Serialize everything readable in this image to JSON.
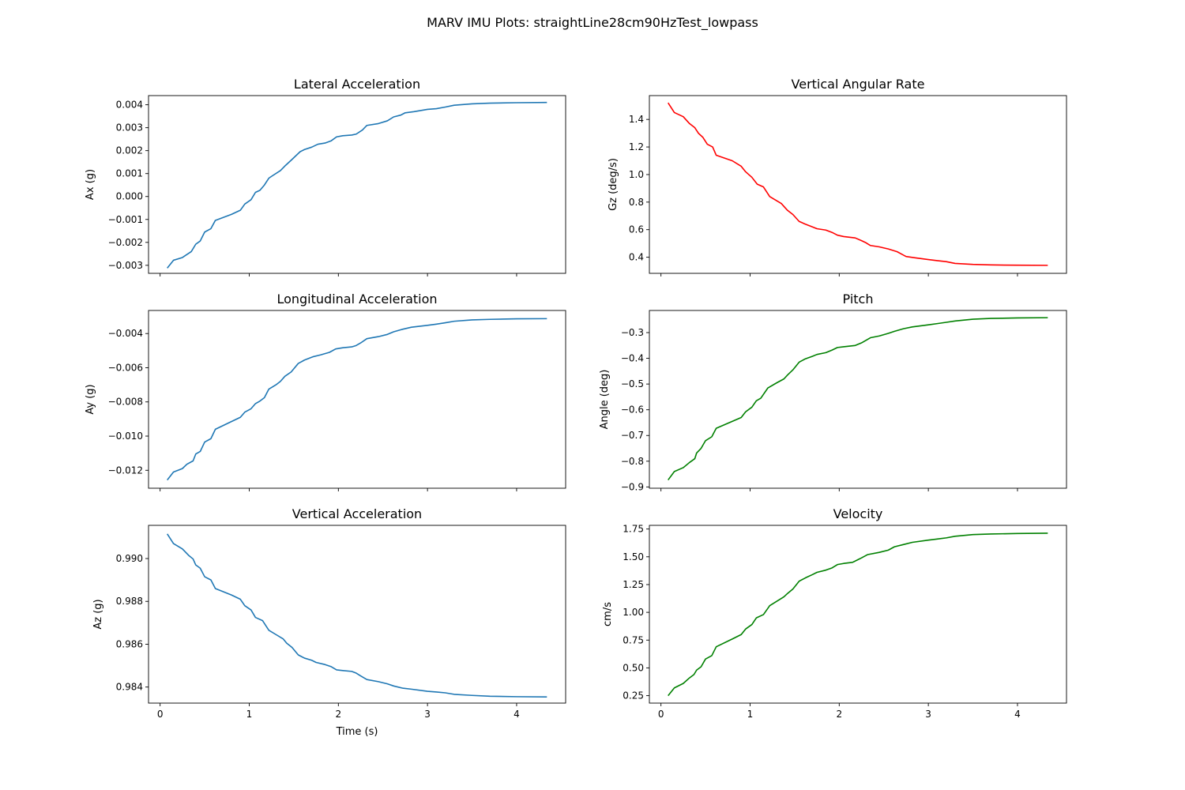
{
  "figure": {
    "title": "MARV IMU Plots: straightLine28cm90HzTest_lowpass"
  },
  "chart_data": [
    {
      "type": "line",
      "title": "Lateral Acceleration",
      "xlabel": "",
      "ylabel": "Ax (g)",
      "xlim": [
        -0.13,
        4.55
      ],
      "ylim": [
        -0.00335,
        0.0044
      ],
      "xticks": [
        0,
        1,
        2,
        3,
        4
      ],
      "xtick_labels_visible": false,
      "yticks": [
        -0.003,
        -0.002,
        -0.001,
        0.0,
        0.001,
        0.002,
        0.003,
        0.004
      ],
      "ytick_labels": [
        "−0.003",
        "−0.002",
        "−0.001",
        "0.000",
        "0.001",
        "0.002",
        "0.003",
        "0.004"
      ],
      "color": "#1f77b4",
      "points": [
        [
          0.08,
          -0.00312
        ],
        [
          0.15,
          -0.00278
        ],
        [
          0.25,
          -0.00266
        ],
        [
          0.35,
          -0.0024
        ],
        [
          0.4,
          -0.00208
        ],
        [
          0.45,
          -0.00194
        ],
        [
          0.5,
          -0.00155
        ],
        [
          0.57,
          -0.0014
        ],
        [
          0.62,
          -0.00104
        ],
        [
          0.8,
          -0.00078
        ],
        [
          0.9,
          -0.0006
        ],
        [
          0.95,
          -0.00033
        ],
        [
          1.02,
          -0.00014
        ],
        [
          1.07,
          0.00018
        ],
        [
          1.12,
          0.00027
        ],
        [
          1.17,
          0.0005
        ],
        [
          1.22,
          0.0008
        ],
        [
          1.27,
          0.00093
        ],
        [
          1.35,
          0.00113
        ],
        [
          1.4,
          0.00133
        ],
        [
          1.47,
          0.00158
        ],
        [
          1.57,
          0.00195
        ],
        [
          1.62,
          0.00205
        ],
        [
          1.7,
          0.00215
        ],
        [
          1.77,
          0.00228
        ],
        [
          1.85,
          0.00233
        ],
        [
          1.92,
          0.00243
        ],
        [
          1.98,
          0.0026
        ],
        [
          2.05,
          0.00265
        ],
        [
          2.15,
          0.00268
        ],
        [
          2.2,
          0.00272
        ],
        [
          2.27,
          0.0029
        ],
        [
          2.32,
          0.0031
        ],
        [
          2.45,
          0.00318
        ],
        [
          2.55,
          0.0033
        ],
        [
          2.62,
          0.00347
        ],
        [
          2.7,
          0.00355
        ],
        [
          2.75,
          0.00365
        ],
        [
          2.85,
          0.0037
        ],
        [
          3.0,
          0.0038
        ],
        [
          3.1,
          0.00383
        ],
        [
          3.2,
          0.0039
        ],
        [
          3.3,
          0.00398
        ],
        [
          3.5,
          0.00404
        ],
        [
          3.7,
          0.00407
        ],
        [
          4.0,
          0.00409
        ],
        [
          4.34,
          0.0041
        ]
      ]
    },
    {
      "type": "line",
      "title": "Vertical Angular Rate",
      "xlabel": "",
      "ylabel": "Gz (deg/s)",
      "xlim": [
        -0.13,
        4.55
      ],
      "ylim": [
        0.283,
        1.573
      ],
      "xticks": [
        0,
        1,
        2,
        3,
        4
      ],
      "xtick_labels_visible": false,
      "yticks": [
        0.4,
        0.6,
        0.8,
        1.0,
        1.2,
        1.4
      ],
      "ytick_labels": [
        "0.4",
        "0.6",
        "0.8",
        "1.0",
        "1.2",
        "1.4"
      ],
      "color": "#ff0000",
      "points": [
        [
          0.08,
          1.52
        ],
        [
          0.15,
          1.45
        ],
        [
          0.25,
          1.42
        ],
        [
          0.32,
          1.37
        ],
        [
          0.38,
          1.34
        ],
        [
          0.42,
          1.3
        ],
        [
          0.47,
          1.27
        ],
        [
          0.52,
          1.22
        ],
        [
          0.58,
          1.2
        ],
        [
          0.62,
          1.14
        ],
        [
          0.8,
          1.1
        ],
        [
          0.9,
          1.06
        ],
        [
          0.95,
          1.02
        ],
        [
          1.02,
          0.98
        ],
        [
          1.08,
          0.93
        ],
        [
          1.15,
          0.91
        ],
        [
          1.22,
          0.84
        ],
        [
          1.35,
          0.79
        ],
        [
          1.42,
          0.74
        ],
        [
          1.48,
          0.71
        ],
        [
          1.55,
          0.66
        ],
        [
          1.62,
          0.64
        ],
        [
          1.7,
          0.62
        ],
        [
          1.75,
          0.607
        ],
        [
          1.85,
          0.597
        ],
        [
          1.92,
          0.58
        ],
        [
          1.98,
          0.56
        ],
        [
          2.05,
          0.55
        ],
        [
          2.18,
          0.54
        ],
        [
          2.25,
          0.52
        ],
        [
          2.3,
          0.505
        ],
        [
          2.35,
          0.485
        ],
        [
          2.45,
          0.475
        ],
        [
          2.55,
          0.46
        ],
        [
          2.65,
          0.44
        ],
        [
          2.75,
          0.405
        ],
        [
          2.85,
          0.396
        ],
        [
          3.0,
          0.383
        ],
        [
          3.1,
          0.375
        ],
        [
          3.2,
          0.368
        ],
        [
          3.3,
          0.355
        ],
        [
          3.5,
          0.348
        ],
        [
          3.7,
          0.344
        ],
        [
          4.0,
          0.342
        ],
        [
          4.34,
          0.341
        ]
      ]
    },
    {
      "type": "line",
      "title": "Longitudinal Acceleration",
      "xlabel": "",
      "ylabel": "Ay (g)",
      "xlim": [
        -0.13,
        4.55
      ],
      "ylim": [
        -0.01305,
        -0.00265
      ],
      "xticks": [
        0,
        1,
        2,
        3,
        4
      ],
      "xtick_labels_visible": false,
      "yticks": [
        -0.012,
        -0.01,
        -0.008,
        -0.006,
        -0.004
      ],
      "ytick_labels": [
        "−0.012",
        "−0.010",
        "−0.008",
        "−0.006",
        "−0.004"
      ],
      "color": "#1f77b4",
      "points": [
        [
          0.08,
          -0.01257
        ],
        [
          0.15,
          -0.0121
        ],
        [
          0.25,
          -0.0119
        ],
        [
          0.3,
          -0.01165
        ],
        [
          0.37,
          -0.01145
        ],
        [
          0.4,
          -0.01105
        ],
        [
          0.45,
          -0.0109
        ],
        [
          0.5,
          -0.01035
        ],
        [
          0.57,
          -0.01015
        ],
        [
          0.62,
          -0.0096
        ],
        [
          0.8,
          -0.00915
        ],
        [
          0.9,
          -0.0089
        ],
        [
          0.95,
          -0.0086
        ],
        [
          1.02,
          -0.0084
        ],
        [
          1.07,
          -0.0081
        ],
        [
          1.12,
          -0.00795
        ],
        [
          1.17,
          -0.00775
        ],
        [
          1.22,
          -0.00725
        ],
        [
          1.3,
          -0.007
        ],
        [
          1.35,
          -0.0068
        ],
        [
          1.4,
          -0.0065
        ],
        [
          1.47,
          -0.00625
        ],
        [
          1.55,
          -0.00575
        ],
        [
          1.62,
          -0.00555
        ],
        [
          1.72,
          -0.00535
        ],
        [
          1.8,
          -0.00525
        ],
        [
          1.9,
          -0.0051
        ],
        [
          1.97,
          -0.0049
        ],
        [
          2.05,
          -0.00483
        ],
        [
          2.15,
          -0.00478
        ],
        [
          2.2,
          -0.0047
        ],
        [
          2.25,
          -0.00455
        ],
        [
          2.32,
          -0.0043
        ],
        [
          2.45,
          -0.00418
        ],
        [
          2.55,
          -0.00405
        ],
        [
          2.62,
          -0.0039
        ],
        [
          2.72,
          -0.00375
        ],
        [
          2.82,
          -0.00363
        ],
        [
          3.0,
          -0.00352
        ],
        [
          3.1,
          -0.00345
        ],
        [
          3.2,
          -0.00337
        ],
        [
          3.3,
          -0.00328
        ],
        [
          3.5,
          -0.0032
        ],
        [
          3.7,
          -0.00317
        ],
        [
          4.0,
          -0.00314
        ],
        [
          4.34,
          -0.00313
        ]
      ]
    },
    {
      "type": "line",
      "title": "Pitch",
      "xlabel": "",
      "ylabel": "Angle (deg)",
      "xlim": [
        -0.13,
        4.55
      ],
      "ylim": [
        -0.905,
        -0.214
      ],
      "xticks": [
        0,
        1,
        2,
        3,
        4
      ],
      "xtick_labels_visible": false,
      "yticks": [
        -0.9,
        -0.8,
        -0.7,
        -0.6,
        -0.5,
        -0.4,
        -0.3
      ],
      "ytick_labels": [
        "−0.9",
        "−0.8",
        "−0.7",
        "−0.6",
        "−0.5",
        "−0.4",
        "−0.3"
      ],
      "color": "#008000",
      "points": [
        [
          0.08,
          -0.873
        ],
        [
          0.15,
          -0.84
        ],
        [
          0.25,
          -0.825
        ],
        [
          0.32,
          -0.805
        ],
        [
          0.38,
          -0.79
        ],
        [
          0.4,
          -0.768
        ],
        [
          0.45,
          -0.75
        ],
        [
          0.5,
          -0.72
        ],
        [
          0.57,
          -0.705
        ],
        [
          0.62,
          -0.672
        ],
        [
          0.8,
          -0.645
        ],
        [
          0.9,
          -0.63
        ],
        [
          0.95,
          -0.608
        ],
        [
          1.02,
          -0.59
        ],
        [
          1.07,
          -0.565
        ],
        [
          1.12,
          -0.555
        ],
        [
          1.2,
          -0.515
        ],
        [
          1.3,
          -0.495
        ],
        [
          1.38,
          -0.48
        ],
        [
          1.42,
          -0.465
        ],
        [
          1.48,
          -0.445
        ],
        [
          1.55,
          -0.415
        ],
        [
          1.62,
          -0.402
        ],
        [
          1.7,
          -0.392
        ],
        [
          1.75,
          -0.385
        ],
        [
          1.85,
          -0.378
        ],
        [
          1.92,
          -0.368
        ],
        [
          1.98,
          -0.358
        ],
        [
          2.05,
          -0.355
        ],
        [
          2.18,
          -0.35
        ],
        [
          2.25,
          -0.34
        ],
        [
          2.3,
          -0.33
        ],
        [
          2.35,
          -0.32
        ],
        [
          2.45,
          -0.313
        ],
        [
          2.55,
          -0.303
        ],
        [
          2.62,
          -0.295
        ],
        [
          2.72,
          -0.285
        ],
        [
          2.82,
          -0.278
        ],
        [
          3.0,
          -0.27
        ],
        [
          3.1,
          -0.265
        ],
        [
          3.2,
          -0.26
        ],
        [
          3.3,
          -0.255
        ],
        [
          3.5,
          -0.248
        ],
        [
          3.7,
          -0.245
        ],
        [
          4.0,
          -0.243
        ],
        [
          4.34,
          -0.242
        ]
      ]
    },
    {
      "type": "line",
      "title": "Vertical Acceleration",
      "xlabel": "Time (s)",
      "ylabel": "Az (g)",
      "xlim": [
        -0.13,
        4.55
      ],
      "ylim": [
        0.98325,
        0.99155
      ],
      "xticks": [
        0,
        1,
        2,
        3,
        4
      ],
      "xtick_labels_visible": true,
      "xtick_labels": [
        "0",
        "1",
        "2",
        "3",
        "4"
      ],
      "yticks": [
        0.984,
        0.986,
        0.988,
        0.99
      ],
      "ytick_labels": [
        "0.984",
        "0.986",
        "0.988",
        "0.990"
      ],
      "color": "#1f77b4",
      "points": [
        [
          0.08,
          0.99115
        ],
        [
          0.15,
          0.9907
        ],
        [
          0.25,
          0.99045
        ],
        [
          0.32,
          0.99015
        ],
        [
          0.37,
          0.98998
        ],
        [
          0.4,
          0.9897
        ],
        [
          0.45,
          0.98955
        ],
        [
          0.5,
          0.98915
        ],
        [
          0.57,
          0.989
        ],
        [
          0.62,
          0.9886
        ],
        [
          0.8,
          0.9883
        ],
        [
          0.9,
          0.9881
        ],
        [
          0.95,
          0.9878
        ],
        [
          1.02,
          0.9876
        ],
        [
          1.07,
          0.98725
        ],
        [
          1.15,
          0.9871
        ],
        [
          1.22,
          0.98665
        ],
        [
          1.3,
          0.98645
        ],
        [
          1.38,
          0.98625
        ],
        [
          1.42,
          0.98605
        ],
        [
          1.48,
          0.98585
        ],
        [
          1.55,
          0.9855
        ],
        [
          1.62,
          0.98535
        ],
        [
          1.7,
          0.98525
        ],
        [
          1.75,
          0.98515
        ],
        [
          1.85,
          0.98505
        ],
        [
          1.92,
          0.98495
        ],
        [
          1.98,
          0.9848
        ],
        [
          2.05,
          0.98477
        ],
        [
          2.15,
          0.98473
        ],
        [
          2.2,
          0.98465
        ],
        [
          2.25,
          0.98452
        ],
        [
          2.32,
          0.98435
        ],
        [
          2.45,
          0.98425
        ],
        [
          2.55,
          0.98415
        ],
        [
          2.62,
          0.98405
        ],
        [
          2.72,
          0.98395
        ],
        [
          2.82,
          0.9839
        ],
        [
          3.0,
          0.9838
        ],
        [
          3.1,
          0.98377
        ],
        [
          3.2,
          0.98373
        ],
        [
          3.3,
          0.98366
        ],
        [
          3.5,
          0.98361
        ],
        [
          3.7,
          0.98357
        ],
        [
          4.0,
          0.98355
        ],
        [
          4.34,
          0.98354
        ]
      ]
    },
    {
      "type": "line",
      "title": "Velocity",
      "xlabel": "",
      "ylabel": "cm/s",
      "xlim": [
        -0.13,
        4.55
      ],
      "ylim": [
        0.183,
        1.783
      ],
      "xticks": [
        0,
        1,
        2,
        3,
        4
      ],
      "xtick_labels_visible": true,
      "xtick_labels": [
        "0",
        "1",
        "2",
        "3",
        "4"
      ],
      "yticks": [
        0.25,
        0.5,
        0.75,
        1.0,
        1.25,
        1.5,
        1.75
      ],
      "ytick_labels": [
        "0.25",
        "0.50",
        "0.75",
        "1.00",
        "1.25",
        "1.50",
        "1.75"
      ],
      "color": "#008000",
      "points": [
        [
          0.08,
          0.25
        ],
        [
          0.15,
          0.32
        ],
        [
          0.25,
          0.36
        ],
        [
          0.32,
          0.41
        ],
        [
          0.37,
          0.44
        ],
        [
          0.4,
          0.48
        ],
        [
          0.45,
          0.51
        ],
        [
          0.5,
          0.58
        ],
        [
          0.57,
          0.61
        ],
        [
          0.62,
          0.69
        ],
        [
          0.8,
          0.76
        ],
        [
          0.9,
          0.8
        ],
        [
          0.95,
          0.85
        ],
        [
          1.02,
          0.89
        ],
        [
          1.07,
          0.95
        ],
        [
          1.15,
          0.98
        ],
        [
          1.22,
          1.06
        ],
        [
          1.3,
          1.1
        ],
        [
          1.38,
          1.14
        ],
        [
          1.42,
          1.17
        ],
        [
          1.48,
          1.21
        ],
        [
          1.55,
          1.28
        ],
        [
          1.62,
          1.31
        ],
        [
          1.7,
          1.34
        ],
        [
          1.75,
          1.36
        ],
        [
          1.85,
          1.38
        ],
        [
          1.92,
          1.4
        ],
        [
          1.98,
          1.43
        ],
        [
          2.05,
          1.44
        ],
        [
          2.15,
          1.45
        ],
        [
          2.2,
          1.47
        ],
        [
          2.25,
          1.49
        ],
        [
          2.32,
          1.52
        ],
        [
          2.45,
          1.54
        ],
        [
          2.55,
          1.56
        ],
        [
          2.62,
          1.59
        ],
        [
          2.72,
          1.61
        ],
        [
          2.82,
          1.63
        ],
        [
          3.0,
          1.65
        ],
        [
          3.1,
          1.66
        ],
        [
          3.2,
          1.67
        ],
        [
          3.3,
          1.685
        ],
        [
          3.5,
          1.7
        ],
        [
          3.7,
          1.705
        ],
        [
          4.0,
          1.71
        ],
        [
          4.34,
          1.712
        ]
      ]
    }
  ]
}
